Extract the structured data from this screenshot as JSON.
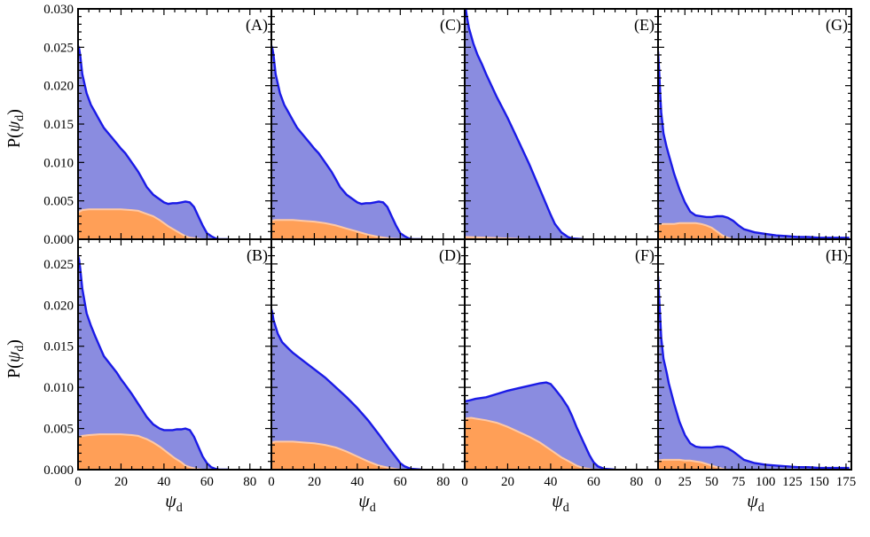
{
  "colors": {
    "total_fill": "#8a8ce0",
    "total_line": "#1a1ae6",
    "sub_fill": "#ff9f57",
    "sub_line": "#ffc9a4",
    "frame": "#000000"
  },
  "ylabel": {
    "main": "P(",
    "symbol": "ψ",
    "sub": "d",
    "close": ")"
  },
  "xlabel": {
    "symbol": "ψ",
    "sub": "d"
  },
  "chart_data": [
    {
      "type": "area",
      "id": "A",
      "label": "(A)",
      "xlim": [
        0,
        90
      ],
      "ylim": [
        0,
        0.03
      ],
      "xticks": [
        "0",
        "20",
        "40",
        "60",
        "80"
      ],
      "yticks": [
        "0.000",
        "0.005",
        "0.010",
        "0.015",
        "0.020",
        "0.025",
        "0.030"
      ],
      "series": [
        {
          "role": "total",
          "x": [
            0,
            0.5,
            1,
            2,
            4,
            6,
            8,
            10,
            12,
            15,
            18,
            20,
            22,
            25,
            28,
            30,
            32,
            35,
            38,
            40,
            42,
            44,
            46,
            48,
            50,
            52,
            54,
            56,
            58,
            60,
            62,
            64,
            66,
            70
          ],
          "y": [
            0.0252,
            0.0248,
            0.024,
            0.0215,
            0.019,
            0.0175,
            0.0165,
            0.0155,
            0.0145,
            0.0135,
            0.0125,
            0.0118,
            0.0112,
            0.01,
            0.0088,
            0.0078,
            0.0068,
            0.0058,
            0.0052,
            0.0048,
            0.0046,
            0.0047,
            0.0047,
            0.0048,
            0.0049,
            0.0048,
            0.0042,
            0.003,
            0.0018,
            0.0008,
            0.0004,
            0.0001,
            0,
            0
          ]
        },
        {
          "role": "subset",
          "x": [
            0,
            2,
            5,
            10,
            15,
            20,
            25,
            28,
            30,
            32,
            35,
            38,
            40,
            42,
            45,
            48,
            50,
            52,
            55,
            58,
            60
          ],
          "y": [
            0.0035,
            0.0038,
            0.0039,
            0.0039,
            0.0039,
            0.0039,
            0.0038,
            0.0037,
            0.0035,
            0.0033,
            0.003,
            0.0025,
            0.0021,
            0.0017,
            0.0012,
            0.0007,
            0.0004,
            0.0002,
            0.0001,
            0,
            0
          ]
        }
      ]
    },
    {
      "type": "area",
      "id": "B",
      "label": "(B)",
      "xlim": [
        0,
        90
      ],
      "ylim": [
        0,
        0.028
      ],
      "xticks": [
        "0",
        "20",
        "40",
        "60",
        "80"
      ],
      "yticks": [
        "0.000",
        "0.005",
        "0.010",
        "0.015",
        "0.020",
        "0.025"
      ],
      "series": [
        {
          "role": "total",
          "x": [
            0,
            0.5,
            1,
            2,
            4,
            6,
            8,
            10,
            12,
            15,
            18,
            20,
            22,
            25,
            28,
            30,
            32,
            35,
            38,
            40,
            42,
            44,
            46,
            48,
            50,
            52,
            54,
            56,
            58,
            60,
            62,
            64,
            66,
            70
          ],
          "y": [
            0.026,
            0.0255,
            0.0245,
            0.022,
            0.019,
            0.0175,
            0.0162,
            0.015,
            0.0138,
            0.0128,
            0.0118,
            0.011,
            0.0103,
            0.0092,
            0.008,
            0.0072,
            0.0064,
            0.0055,
            0.005,
            0.0048,
            0.0048,
            0.0048,
            0.0049,
            0.0049,
            0.005,
            0.0048,
            0.004,
            0.0028,
            0.0016,
            0.0008,
            0.0003,
            0.0001,
            0,
            0
          ]
        },
        {
          "role": "subset",
          "x": [
            0,
            2,
            5,
            10,
            15,
            20,
            25,
            28,
            30,
            32,
            35,
            38,
            40,
            42,
            45,
            48,
            50,
            52,
            55,
            58,
            60
          ],
          "y": [
            0.0039,
            0.0041,
            0.0042,
            0.0043,
            0.0043,
            0.0043,
            0.0042,
            0.0041,
            0.0039,
            0.0037,
            0.0033,
            0.0028,
            0.0024,
            0.002,
            0.0014,
            0.0009,
            0.0005,
            0.0003,
            0.0001,
            0,
            0
          ]
        }
      ]
    },
    {
      "type": "area",
      "id": "C",
      "label": "(C)",
      "xlim": [
        0,
        90
      ],
      "ylim": [
        0,
        0.03
      ],
      "xticks": [
        "0",
        "20",
        "40",
        "60",
        "80"
      ],
      "yticks": [],
      "series": [
        {
          "role": "total",
          "x": [
            0,
            0.5,
            1,
            2,
            4,
            6,
            8,
            10,
            12,
            15,
            18,
            20,
            22,
            25,
            28,
            30,
            32,
            35,
            38,
            40,
            42,
            44,
            46,
            48,
            50,
            52,
            54,
            56,
            58,
            60,
            62,
            64,
            66,
            70
          ],
          "y": [
            0.0252,
            0.0248,
            0.024,
            0.0215,
            0.019,
            0.0175,
            0.0165,
            0.0155,
            0.0145,
            0.0135,
            0.0125,
            0.0118,
            0.0112,
            0.01,
            0.0088,
            0.0078,
            0.0068,
            0.0058,
            0.0052,
            0.0048,
            0.0046,
            0.0047,
            0.0047,
            0.0048,
            0.0049,
            0.0048,
            0.0042,
            0.003,
            0.0018,
            0.0008,
            0.0004,
            0.0001,
            0,
            0
          ]
        },
        {
          "role": "subset",
          "x": [
            0,
            2,
            5,
            10,
            15,
            20,
            25,
            30,
            35,
            40,
            45,
            50,
            55,
            60
          ],
          "y": [
            0.0024,
            0.0025,
            0.0025,
            0.0025,
            0.0024,
            0.0023,
            0.0021,
            0.0018,
            0.0014,
            0.001,
            0.0006,
            0.0003,
            0.0001,
            0
          ]
        }
      ]
    },
    {
      "type": "area",
      "id": "D",
      "label": "(D)",
      "xlim": [
        0,
        90
      ],
      "ylim": [
        0,
        0.028
      ],
      "xticks": [
        "0",
        "20",
        "40",
        "60",
        "80"
      ],
      "yticks": [],
      "series": [
        {
          "role": "total",
          "x": [
            0,
            0.5,
            1,
            3,
            5,
            8,
            10,
            15,
            20,
            25,
            30,
            35,
            40,
            45,
            50,
            55,
            58,
            60,
            62,
            65,
            70
          ],
          "y": [
            0.0195,
            0.019,
            0.0182,
            0.0165,
            0.0155,
            0.0147,
            0.0142,
            0.0132,
            0.0122,
            0.0112,
            0.01,
            0.0088,
            0.0075,
            0.006,
            0.0043,
            0.0025,
            0.0015,
            0.0008,
            0.0004,
            0.0001,
            0
          ]
        },
        {
          "role": "subset",
          "x": [
            0,
            2,
            5,
            10,
            15,
            20,
            25,
            30,
            35,
            40,
            45,
            50,
            55,
            60
          ],
          "y": [
            0.0033,
            0.0034,
            0.0034,
            0.0034,
            0.0033,
            0.0032,
            0.003,
            0.0027,
            0.0022,
            0.0016,
            0.001,
            0.0005,
            0.0002,
            0
          ]
        }
      ]
    },
    {
      "type": "area",
      "id": "E",
      "label": "(E)",
      "xlim": [
        0,
        90
      ],
      "ylim": [
        0,
        0.03
      ],
      "xticks": [
        "0",
        "20",
        "40",
        "60",
        "80"
      ],
      "yticks": [],
      "series": [
        {
          "role": "total",
          "x": [
            0,
            1,
            2,
            4,
            6,
            8,
            10,
            15,
            20,
            25,
            30,
            35,
            40,
            42,
            45,
            48,
            50,
            55
          ],
          "y": [
            0.031,
            0.029,
            0.0275,
            0.0255,
            0.024,
            0.0228,
            0.0215,
            0.0185,
            0.0158,
            0.0128,
            0.0098,
            0.0065,
            0.0032,
            0.002,
            0.0009,
            0.0003,
            0.0001,
            0
          ]
        },
        {
          "role": "subset",
          "x": [
            0,
            10,
            20,
            30
          ],
          "y": [
            0.0003,
            0.0002,
            0.0001,
            0
          ]
        }
      ]
    },
    {
      "type": "area",
      "id": "F",
      "label": "(F)",
      "xlim": [
        0,
        90
      ],
      "ylim": [
        0,
        0.028
      ],
      "xticks": [
        "0",
        "20",
        "40",
        "60",
        "80"
      ],
      "yticks": [],
      "series": [
        {
          "role": "total",
          "x": [
            0,
            2,
            5,
            10,
            15,
            20,
            25,
            30,
            35,
            38,
            40,
            42,
            45,
            48,
            50,
            52,
            55,
            58,
            60,
            62,
            65,
            70
          ],
          "y": [
            0.0083,
            0.0084,
            0.0086,
            0.0088,
            0.0092,
            0.0096,
            0.0099,
            0.0102,
            0.0105,
            0.0106,
            0.0104,
            0.0098,
            0.0088,
            0.0076,
            0.0065,
            0.0052,
            0.0035,
            0.0018,
            0.0009,
            0.0004,
            0.0001,
            0
          ]
        },
        {
          "role": "subset",
          "x": [
            0,
            3,
            5,
            10,
            15,
            20,
            25,
            30,
            35,
            40,
            45,
            50,
            52,
            55,
            58,
            60
          ],
          "y": [
            0.0062,
            0.0063,
            0.0062,
            0.006,
            0.0057,
            0.0052,
            0.0046,
            0.004,
            0.0033,
            0.0024,
            0.0015,
            0.0008,
            0.0005,
            0.0002,
            0.0001,
            0
          ]
        }
      ]
    },
    {
      "type": "area",
      "id": "G",
      "label": "(G)",
      "xlim": [
        0,
        180
      ],
      "ylim": [
        0,
        0.03
      ],
      "xticks": [
        "0",
        "25",
        "50",
        "75",
        "100",
        "125",
        "150",
        "175"
      ],
      "yticks": [],
      "series": [
        {
          "role": "total",
          "x": [
            0,
            1,
            2,
            3,
            5,
            8,
            10,
            15,
            20,
            25,
            30,
            35,
            40,
            45,
            50,
            55,
            60,
            65,
            70,
            75,
            80,
            90,
            100,
            110,
            120,
            130,
            140,
            150,
            160,
            170,
            178
          ],
          "y": [
            0.0245,
            0.022,
            0.019,
            0.0165,
            0.0138,
            0.012,
            0.011,
            0.0085,
            0.0065,
            0.0048,
            0.0036,
            0.0031,
            0.003,
            0.0029,
            0.0029,
            0.003,
            0.003,
            0.0028,
            0.0024,
            0.0018,
            0.0013,
            0.0009,
            0.0007,
            0.0005,
            0.0004,
            0.0003,
            0.0003,
            0.0002,
            0.0002,
            0.0002,
            0.0002
          ]
        },
        {
          "role": "subset",
          "x": [
            0,
            5,
            10,
            15,
            20,
            25,
            30,
            35,
            40,
            45,
            50,
            55,
            60,
            65,
            70
          ],
          "y": [
            0.0019,
            0.002,
            0.002,
            0.002,
            0.0021,
            0.0021,
            0.0021,
            0.0021,
            0.002,
            0.0018,
            0.0015,
            0.001,
            0.0005,
            0.0002,
            0
          ]
        }
      ]
    },
    {
      "type": "area",
      "id": "H",
      "label": "(H)",
      "xlim": [
        0,
        180
      ],
      "ylim": [
        0,
        0.028
      ],
      "xticks": [
        "0",
        "25",
        "50",
        "75",
        "100",
        "125",
        "150",
        "175"
      ],
      "yticks": [],
      "series": [
        {
          "role": "total",
          "x": [
            0,
            1,
            2,
            3,
            5,
            8,
            10,
            15,
            20,
            25,
            30,
            35,
            40,
            45,
            50,
            55,
            60,
            65,
            70,
            75,
            80,
            90,
            100,
            110,
            120,
            130,
            140,
            150,
            160,
            170,
            178
          ],
          "y": [
            0.0235,
            0.021,
            0.0185,
            0.016,
            0.0135,
            0.0118,
            0.0105,
            0.008,
            0.0058,
            0.0042,
            0.0032,
            0.0028,
            0.0027,
            0.0027,
            0.0027,
            0.0028,
            0.0028,
            0.0026,
            0.0022,
            0.0017,
            0.0012,
            0.0008,
            0.0006,
            0.0005,
            0.0004,
            0.0003,
            0.0003,
            0.0002,
            0.0002,
            0.0002,
            0.0002
          ]
        },
        {
          "role": "subset",
          "x": [
            0,
            5,
            10,
            15,
            20,
            25,
            30,
            35,
            40,
            45,
            50,
            55,
            60,
            65
          ],
          "y": [
            0.0011,
            0.0012,
            0.0012,
            0.0012,
            0.0012,
            0.0011,
            0.0011,
            0.001,
            0.0009,
            0.0007,
            0.0005,
            0.0003,
            0.0001,
            0
          ]
        }
      ]
    }
  ]
}
